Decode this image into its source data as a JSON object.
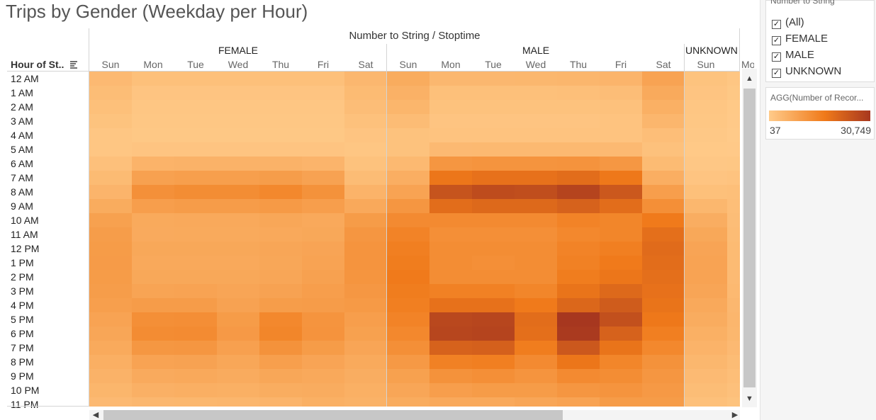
{
  "title": "Trips by Gender (Weekday per Hour)",
  "columns_title": "Number to String / Stoptime",
  "row_header": "Hour of St..",
  "colors": {
    "low": "#FFCB8A",
    "mid": "#F07A1A",
    "high": "#A7371F"
  },
  "chart_data": {
    "type": "heatmap",
    "title": "Trips by Gender (Weekday per Hour)",
    "x_title": "Number to String / Stoptime",
    "y_title": "Hour of St..",
    "genders": [
      "FEMALE",
      "MALE",
      "UNKNOWN"
    ],
    "days": [
      "Sun",
      "Mon",
      "Tue",
      "Wed",
      "Thu",
      "Fri",
      "Sat"
    ],
    "visible_day_labels": [
      "Sun",
      "Mon",
      "Tue",
      "Wed",
      "Thu",
      "Fri",
      "Sat",
      "Sun",
      "Mon",
      "Tue",
      "Wed",
      "Thu",
      "Fri",
      "Sat",
      "Sun",
      "Mo"
    ],
    "hours": [
      "12 AM",
      "1 AM",
      "2 AM",
      "3 AM",
      "4 AM",
      "5 AM",
      "6 AM",
      "7 AM",
      "8 AM",
      "9 AM",
      "10 AM",
      "11 AM",
      "12 PM",
      "1 PM",
      "2 PM",
      "3 PM",
      "4 PM",
      "5 PM",
      "6 PM",
      "7 PM",
      "8 PM",
      "9 PM",
      "10 PM",
      "11 PM"
    ],
    "color_range": [
      37,
      30749
    ],
    "series": [
      {
        "name": "FEMALE",
        "values": [
          [
            2200,
            1300,
            1300,
            1300,
            1300,
            1300,
            2500
          ],
          [
            1700,
            700,
            700,
            700,
            700,
            700,
            2000
          ],
          [
            1300,
            500,
            500,
            500,
            500,
            500,
            1600
          ],
          [
            900,
            400,
            400,
            400,
            400,
            400,
            1100
          ],
          [
            500,
            300,
            300,
            300,
            300,
            300,
            700
          ],
          [
            500,
            700,
            700,
            700,
            700,
            700,
            500
          ],
          [
            1200,
            3200,
            3300,
            3300,
            3300,
            3000,
            1000
          ],
          [
            2000,
            6400,
            6800,
            6800,
            7200,
            6200,
            1800
          ],
          [
            3000,
            9800,
            10500,
            10500,
            11500,
            9500,
            3200
          ],
          [
            4500,
            7000,
            7400,
            7400,
            7800,
            7000,
            5000
          ],
          [
            6500,
            4800,
            5000,
            5000,
            5300,
            5000,
            7500
          ],
          [
            7200,
            4700,
            4800,
            4800,
            5000,
            5200,
            8500
          ],
          [
            7500,
            5200,
            5200,
            5200,
            5500,
            5800,
            9000
          ],
          [
            7600,
            5000,
            5000,
            5000,
            5300,
            6000,
            9000
          ],
          [
            7500,
            5200,
            5200,
            5200,
            5500,
            6400,
            8800
          ],
          [
            7200,
            5900,
            6000,
            5600,
            6200,
            7000,
            8300
          ],
          [
            6800,
            7400,
            7400,
            6200,
            7200,
            7400,
            7800
          ],
          [
            6000,
            10000,
            10200,
            7500,
            11500,
            9000,
            7000
          ],
          [
            5500,
            10600,
            10800,
            7900,
            12000,
            9200,
            6500
          ],
          [
            4800,
            8400,
            8500,
            6600,
            9400,
            7500,
            5600
          ],
          [
            3900,
            6000,
            6200,
            5400,
            6800,
            5800,
            4800
          ],
          [
            3300,
            4700,
            4900,
            4600,
            5400,
            4900,
            4200
          ],
          [
            2800,
            3700,
            3900,
            3800,
            4300,
            4400,
            3800
          ],
          [
            2200,
            2500,
            2600,
            2700,
            3000,
            3800,
            3400
          ]
        ]
      },
      {
        "name": "MALE",
        "values": [
          [
            4500,
            2500,
            2500,
            2600,
            2700,
            3000,
            6000
          ],
          [
            3600,
            1300,
            1300,
            1300,
            1400,
            1600,
            4800
          ],
          [
            2800,
            1000,
            1000,
            1000,
            1000,
            1100,
            3800
          ],
          [
            1800,
            700,
            700,
            700,
            700,
            800,
            2700
          ],
          [
            1000,
            800,
            800,
            800,
            800,
            800,
            1500
          ],
          [
            1000,
            2200,
            2300,
            2300,
            2300,
            2200,
            1100
          ],
          [
            2300,
            8500,
            9000,
            9000,
            9200,
            8300,
            2000
          ],
          [
            4000,
            15500,
            16500,
            16500,
            17500,
            15000,
            4000
          ],
          [
            6000,
            23500,
            25500,
            25000,
            27500,
            22500,
            7000
          ],
          [
            8500,
            17500,
            18500,
            18500,
            20000,
            17500,
            10000
          ],
          [
            11000,
            11000,
            11000,
            11000,
            12500,
            12000,
            14500
          ],
          [
            12500,
            10000,
            10000,
            10000,
            11500,
            12000,
            17000
          ],
          [
            13500,
            10500,
            10500,
            10500,
            12500,
            13500,
            18000
          ],
          [
            14000,
            10500,
            10000,
            10500,
            13000,
            14500,
            17500
          ],
          [
            14500,
            10500,
            10500,
            10500,
            14000,
            15500,
            17000
          ],
          [
            14000,
            13000,
            13000,
            12000,
            16000,
            18500,
            16500
          ],
          [
            13500,
            16500,
            16500,
            14500,
            19000,
            21500,
            16000
          ],
          [
            12500,
            26500,
            27000,
            17500,
            30749,
            24500,
            15000
          ],
          [
            11500,
            27000,
            27500,
            17000,
            30000,
            20000,
            13500
          ],
          [
            10000,
            20000,
            20500,
            14000,
            22500,
            16000,
            11500
          ],
          [
            8000,
            13000,
            13500,
            11000,
            15500,
            12000,
            9500
          ],
          [
            6500,
            9500,
            10000,
            9000,
            11000,
            10500,
            8500
          ],
          [
            5500,
            7000,
            7500,
            7500,
            8500,
            9000,
            8000
          ],
          [
            4500,
            5000,
            5000,
            5500,
            6000,
            7500,
            7500
          ]
        ]
      },
      {
        "name": "UNKNOWN",
        "values": [
          [
            900,
            500,
            500,
            500,
            500,
            500,
            900
          ],
          [
            700,
            300,
            300,
            300,
            300,
            300,
            700
          ],
          [
            500,
            200,
            200,
            200,
            200,
            200,
            600
          ],
          [
            400,
            150,
            150,
            150,
            150,
            150,
            400
          ],
          [
            250,
            100,
            100,
            100,
            100,
            100,
            250
          ],
          [
            200,
            150,
            150,
            150,
            150,
            150,
            200
          ],
          [
            350,
            400,
            400,
            400,
            400,
            400,
            300
          ],
          [
            700,
            800,
            800,
            800,
            800,
            800,
            600
          ],
          [
            1300,
            1400,
            1400,
            1400,
            1400,
            1400,
            1300
          ],
          [
            2600,
            1500,
            1500,
            1500,
            1500,
            1500,
            2800
          ],
          [
            4200,
            1600,
            1600,
            1600,
            1600,
            1700,
            4500
          ],
          [
            5200,
            1800,
            1800,
            1800,
            1800,
            2000,
            5500
          ],
          [
            5800,
            2000,
            2000,
            2000,
            2000,
            2200,
            6000
          ],
          [
            6000,
            2000,
            2000,
            2000,
            2000,
            2300,
            6000
          ],
          [
            6000,
            2100,
            2100,
            2100,
            2100,
            2500,
            5800
          ],
          [
            5600,
            2300,
            2300,
            2300,
            2300,
            2700,
            5400
          ],
          [
            5000,
            2500,
            2500,
            2500,
            2500,
            2900,
            4800
          ],
          [
            4400,
            2700,
            2700,
            2700,
            2700,
            3000,
            4200
          ],
          [
            3800,
            2600,
            2600,
            2600,
            2600,
            2800,
            3600
          ],
          [
            3200,
            2200,
            2200,
            2200,
            2200,
            2400,
            3000
          ],
          [
            2600,
            1800,
            1800,
            1800,
            1800,
            2000,
            2500
          ],
          [
            2100,
            1500,
            1500,
            1500,
            1500,
            1700,
            2100
          ],
          [
            1700,
            1200,
            1200,
            1200,
            1200,
            1500,
            1800
          ],
          [
            1300,
            900,
            900,
            900,
            900,
            1200,
            1500
          ]
        ]
      }
    ]
  },
  "filter": {
    "title": "Number to String",
    "items": [
      {
        "label": "(All)",
        "checked": true
      },
      {
        "label": "FEMALE",
        "checked": true
      },
      {
        "label": "MALE",
        "checked": true
      },
      {
        "label": "UNKNOWN",
        "checked": true
      }
    ]
  },
  "legend": {
    "title": "AGG(Number of Recor...",
    "min": "37",
    "max": "30,749"
  }
}
